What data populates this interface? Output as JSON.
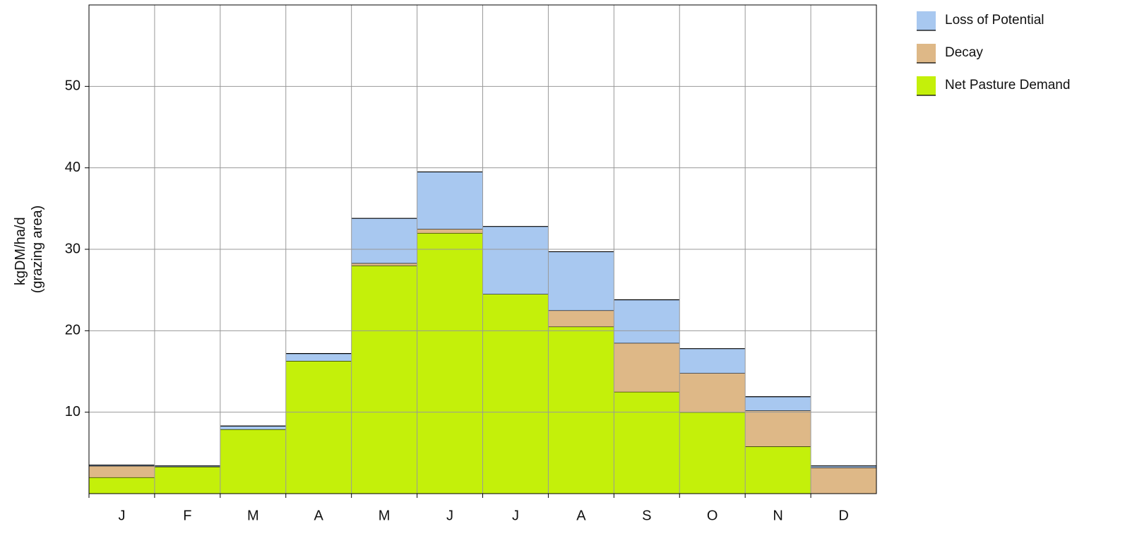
{
  "chart_data": {
    "type": "stacked_area",
    "ylabel": [
      "kgDM/ha/d",
      "(grazing area)"
    ],
    "categories": [
      "J",
      "F",
      "M",
      "A",
      "M",
      "J",
      "J",
      "A",
      "S",
      "O",
      "N",
      "D"
    ],
    "series": [
      {
        "name": "Net Pasture Demand",
        "color": "#c4f00a",
        "values": [
          2,
          3.3,
          7.9,
          16.3,
          28,
          32,
          24.5,
          20.5,
          12.5,
          10,
          5.8,
          0
        ]
      },
      {
        "name": "Decay",
        "color": "#deb887",
        "values": [
          1.4,
          0,
          0,
          0,
          0.3,
          0.5,
          0,
          2,
          6,
          4.8,
          4.4,
          3.2
        ]
      },
      {
        "name": "Loss of Potential",
        "color": "#a8c8f0",
        "values": [
          0.1,
          0.1,
          0.4,
          0.9,
          5.5,
          7,
          8.3,
          7.2,
          5.3,
          3,
          1.7,
          0.2
        ]
      }
    ],
    "ylim": [
      0,
      60
    ],
    "yticks": [
      10,
      20,
      30,
      40,
      50
    ],
    "grid": true,
    "legend": "right"
  }
}
